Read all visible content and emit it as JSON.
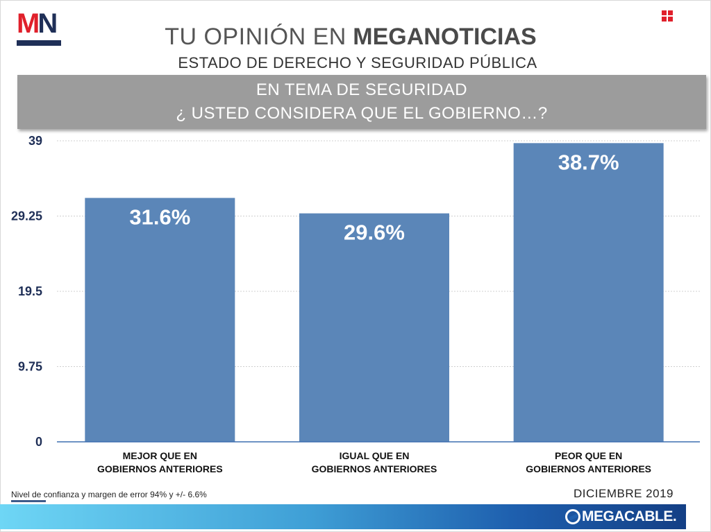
{
  "header": {
    "logo_text_m": "M",
    "logo_text_n": "N",
    "title_light": "TU OPINIÓN EN",
    "title_bold": "MEGANOTICIAS",
    "subtitle": "ESTADO DE DERECHO Y SEGURIDAD PÚBLICA",
    "corner_icon": "grid-icon"
  },
  "banner": {
    "line1": "EN TEMA DE SEGURIDAD",
    "line2": "¿ USTED CONSIDERA QUE EL GOBIERNO…?"
  },
  "chart_data": {
    "type": "bar",
    "categories": [
      [
        "MEJOR QUE EN",
        "GOBIERNOS ANTERIORES"
      ],
      [
        "IGUAL QUE EN",
        "GOBIERNOS ANTERIORES"
      ],
      [
        "PEOR QUE EN",
        "GOBIERNOS ANTERIORES"
      ]
    ],
    "values": [
      31.6,
      29.6,
      38.7
    ],
    "data_labels": [
      "31.6%",
      "29.6%",
      "38.7%"
    ],
    "yticks": [
      0,
      9.75,
      19.5,
      29.25,
      39
    ],
    "ytick_labels": [
      "0",
      "9.75",
      "19.5",
      "29.25",
      "39"
    ],
    "ylim": [
      0,
      39
    ],
    "grid": true,
    "bar_color": "#5b86b8",
    "axis_color": "#3d6fb0"
  },
  "footer": {
    "note": "Nivel de confianza y margen de error 94% y +/- 6.6%",
    "date": "DICIEMBRE 2019",
    "brand": "MEGACABLE.",
    "brand_icon": "megacable-swirl-icon"
  }
}
